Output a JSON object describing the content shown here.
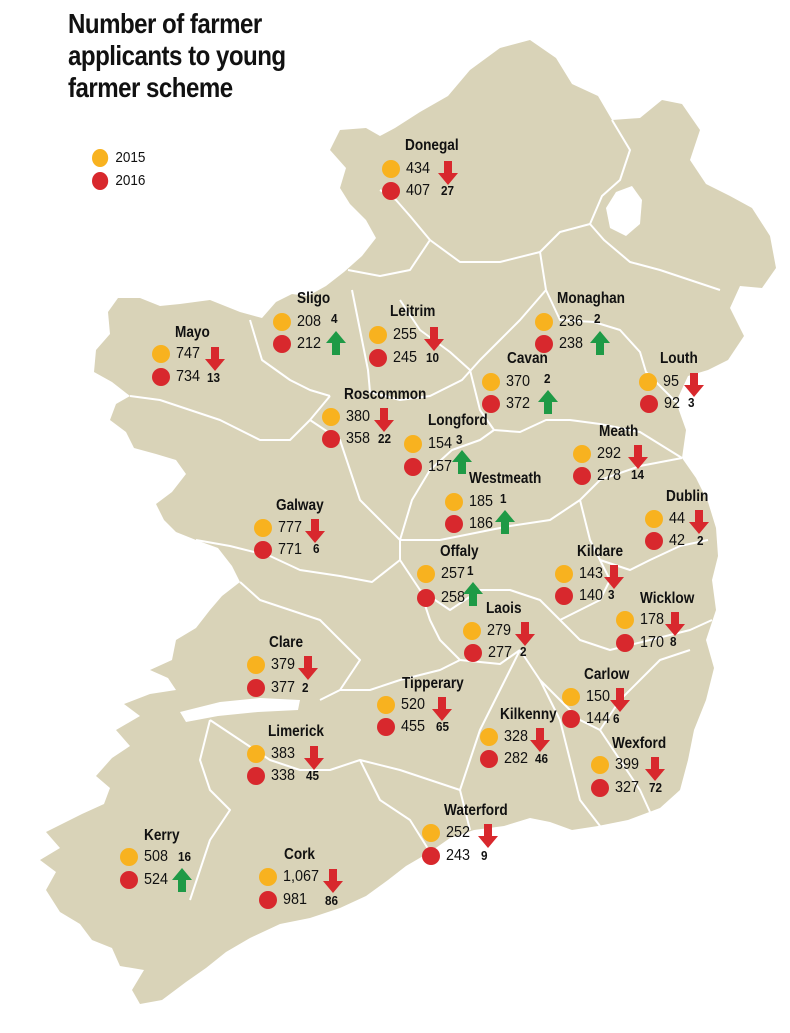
{
  "title": "Number of farmer applicants to young farmer scheme",
  "legend": {
    "y2015": "2015",
    "y2016": "2016"
  },
  "colors": {
    "land": "#d9d3b8",
    "border": "#ffffff",
    "dot_2015": "#f8b21f",
    "dot_2016": "#d8282d",
    "arrow_down": "#d8282d",
    "arrow_up": "#1e9a46"
  },
  "counties": {
    "donegal": {
      "name": "Donegal",
      "v2015": "434",
      "v2016": "407",
      "change": "27",
      "dir": "down"
    },
    "sligo": {
      "name": "Sligo",
      "v2015": "208",
      "v2016": "212",
      "change": "4",
      "dir": "up"
    },
    "leitrim": {
      "name": "Leitrim",
      "v2015": "255",
      "v2016": "245",
      "change": "10",
      "dir": "down"
    },
    "monaghan": {
      "name": "Monaghan",
      "v2015": "236",
      "v2016": "238",
      "change": "2",
      "dir": "up"
    },
    "mayo": {
      "name": "Mayo",
      "v2015": "747",
      "v2016": "734",
      "change": "13",
      "dir": "down"
    },
    "louth": {
      "name": "Louth",
      "v2015": "95",
      "v2016": "92",
      "change": "3",
      "dir": "down"
    },
    "cavan": {
      "name": "Cavan",
      "v2015": "370",
      "v2016": "372",
      "change": "2",
      "dir": "up"
    },
    "roscommon": {
      "name": "Roscommon",
      "v2015": "380",
      "v2016": "358",
      "change": "22",
      "dir": "down"
    },
    "longford": {
      "name": "Longford",
      "v2015": "154",
      "v2016": "157",
      "change": "3",
      "dir": "up"
    },
    "meath": {
      "name": "Meath",
      "v2015": "292",
      "v2016": "278",
      "change": "14",
      "dir": "down"
    },
    "westmeath": {
      "name": "Westmeath",
      "v2015": "185",
      "v2016": "186",
      "change": "1",
      "dir": "up"
    },
    "galway": {
      "name": "Galway",
      "v2015": "777",
      "v2016": "771",
      "change": "6",
      "dir": "down"
    },
    "dublin": {
      "name": "Dublin",
      "v2015": "44",
      "v2016": "42",
      "change": "2",
      "dir": "down"
    },
    "offaly": {
      "name": "Offaly",
      "v2015": "257",
      "v2016": "258",
      "change": "1",
      "dir": "up"
    },
    "kildare": {
      "name": "Kildare",
      "v2015": "143",
      "v2016": "140",
      "change": "3",
      "dir": "down"
    },
    "laois": {
      "name": "Laois",
      "v2015": "279",
      "v2016": "277",
      "change": "2",
      "dir": "down"
    },
    "wicklow": {
      "name": "Wicklow",
      "v2015": "178",
      "v2016": "170",
      "change": "8",
      "dir": "down"
    },
    "clare": {
      "name": "Clare",
      "v2015": "379",
      "v2016": "377",
      "change": "2",
      "dir": "down"
    },
    "tipperary": {
      "name": "Tipperary",
      "v2015": "520",
      "v2016": "455",
      "change": "65",
      "dir": "down"
    },
    "carlow": {
      "name": "Carlow",
      "v2015": "150",
      "v2016": "144",
      "change": "6",
      "dir": "down"
    },
    "limerick": {
      "name": "Limerick",
      "v2015": "383",
      "v2016": "338",
      "change": "45",
      "dir": "down"
    },
    "kilkenny": {
      "name": "Kilkenny",
      "v2015": "328",
      "v2016": "282",
      "change": "46",
      "dir": "down"
    },
    "wexford": {
      "name": "Wexford",
      "v2015": "399",
      "v2016": "327",
      "change": "72",
      "dir": "down"
    },
    "waterford": {
      "name": "Waterford",
      "v2015": "252",
      "v2016": "243",
      "change": "9",
      "dir": "down"
    },
    "kerry": {
      "name": "Kerry",
      "v2015": "508",
      "v2016": "524",
      "change": "16",
      "dir": "up"
    },
    "cork": {
      "name": "Cork",
      "v2015": "1,067",
      "v2016": "981",
      "change": "86",
      "dir": "down"
    }
  }
}
